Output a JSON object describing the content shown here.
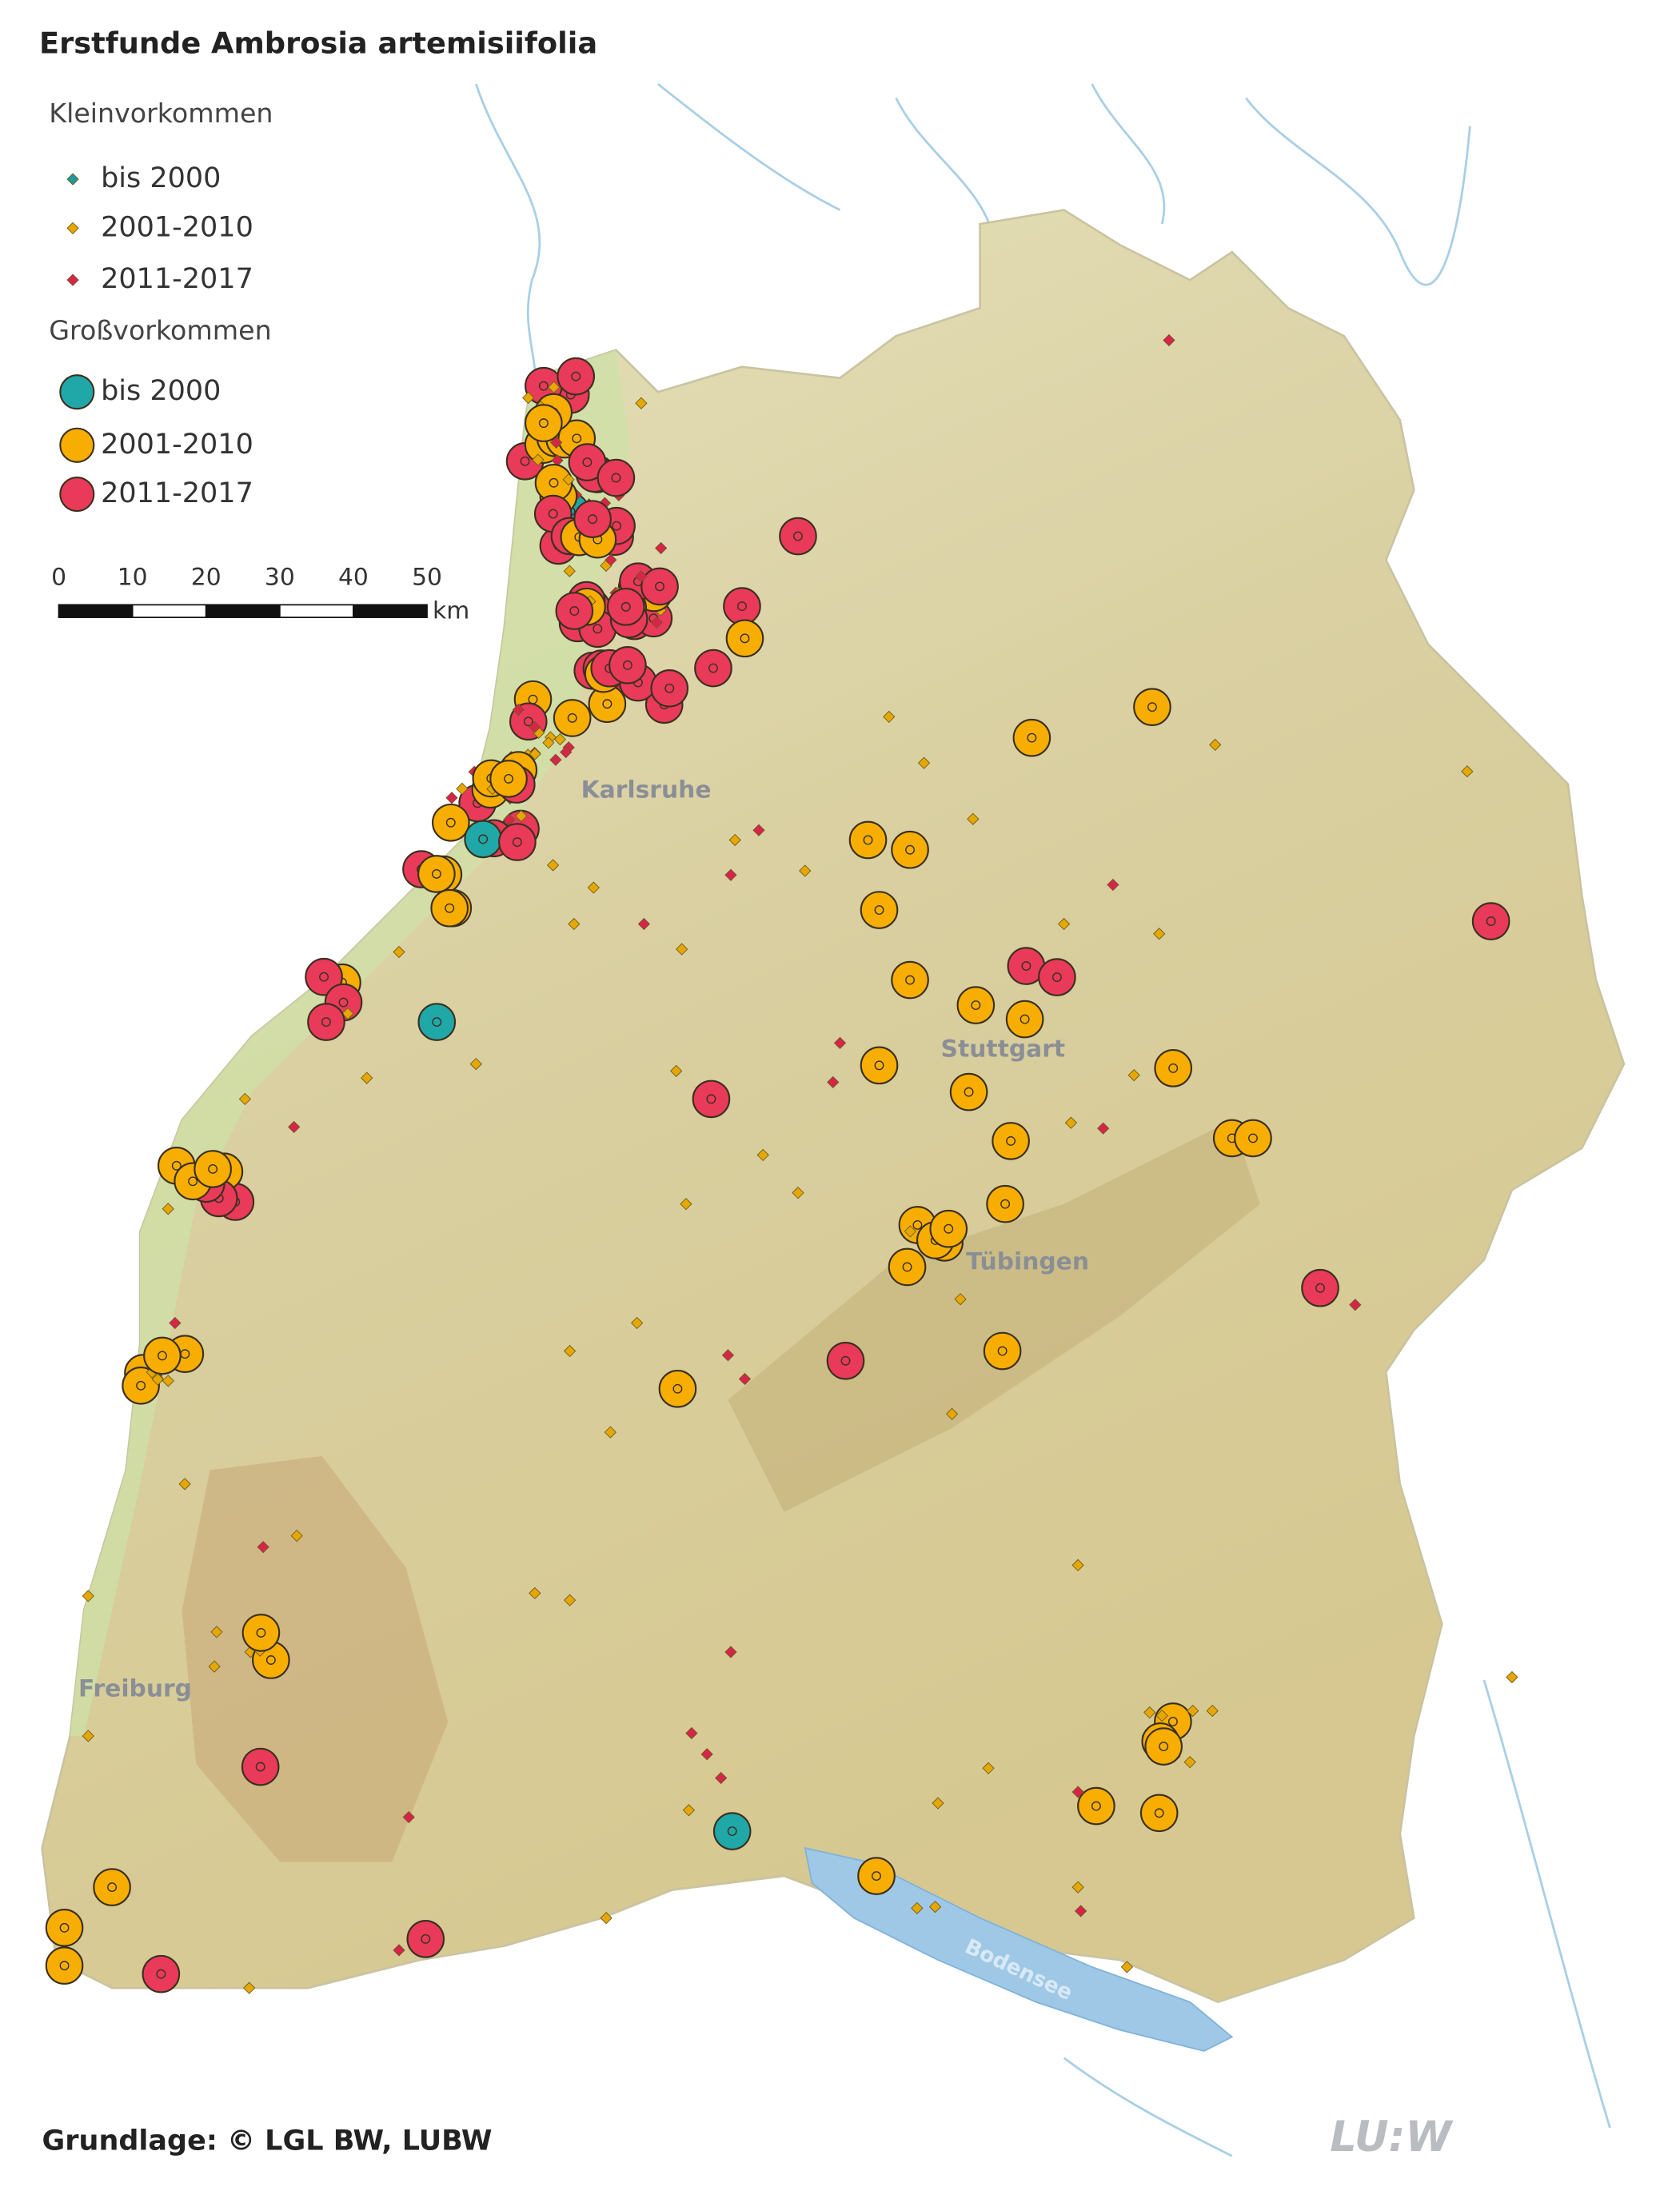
{
  "title": "Erstfunde Ambrosia artemisiifolia",
  "legend": {
    "small": {
      "heading": "Kleinvorkommen",
      "items": [
        {
          "label": "bis 2000",
          "color": "#1a9a9a"
        },
        {
          "label": "2001-2010",
          "color": "#e6a800"
        },
        {
          "label": "2011-2017",
          "color": "#d8244a"
        }
      ]
    },
    "large": {
      "heading": "Großvorkommen",
      "items": [
        {
          "label": "bis 2000",
          "color": "#20a7a7"
        },
        {
          "label": "2001-2010",
          "color": "#f7ae00"
        },
        {
          "label": "2011-2017",
          "color": "#ea3a5a"
        }
      ]
    }
  },
  "scale": {
    "ticks": [
      0,
      10,
      20,
      30,
      40,
      50
    ],
    "unit": "km"
  },
  "places": [
    "Karlsruhe",
    "Stuttgart",
    "Tübingen",
    "Freiburg",
    "Bodensee"
  ],
  "footer": "Grundlage: © LGL BW, LUBW",
  "logo": "LU:W"
}
